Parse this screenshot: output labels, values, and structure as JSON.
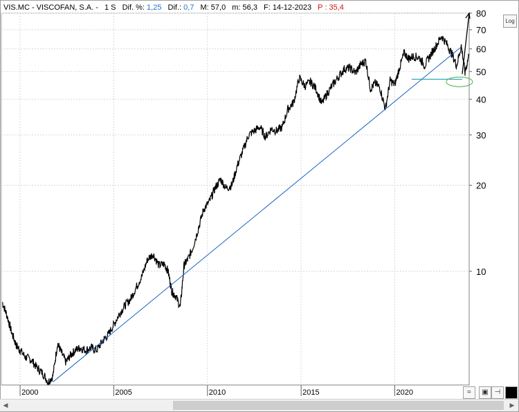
{
  "header": {
    "ticker": "VIS.MC - VISCOFAN, S.A. -",
    "timeframe": "1 S",
    "dif_pct_label": "Dif. %:",
    "dif_pct_value": "1,25",
    "dif_label": "Dif.:",
    "dif_value": "0,7",
    "max_label": "M: 57,0",
    "min_label": "m: 56,3",
    "date_label": "F: 14-12-2023",
    "p_label": "P : 35,4"
  },
  "controls": {
    "log_button": "Log",
    "scroll_left": "◀",
    "scroll_right": "▶"
  },
  "colors": {
    "price": "#000000",
    "trendline": "#1565c0",
    "support": "#0097a7",
    "ellipse": "#4caf50",
    "header_value": "#1f6fd1",
    "header_p": "#d21414",
    "grid": "#d8d8d8"
  },
  "chart_data": {
    "type": "line",
    "title": "VIS.MC - VISCOFAN, S.A.",
    "scale": "log",
    "ylim": [
      4.0,
      80
    ],
    "xlim": [
      1999.0,
      2023.97
    ],
    "y_ticks": [
      10,
      20,
      30,
      40,
      50,
      60,
      70,
      80
    ],
    "x_ticks": [
      2000,
      2005,
      2010,
      2015,
      2020
    ],
    "grid": true,
    "series": [
      {
        "x": [
          1999.05,
          1999.3,
          1999.55,
          1999.8,
          2000.0,
          2000.3,
          2000.6,
          2000.9,
          2001.2,
          2001.5,
          2001.75,
          2002.0,
          2002.2,
          2002.45,
          2002.7,
          2002.95,
          2003.2,
          2003.5,
          2003.8,
          2004.1,
          2004.4,
          2004.7,
          2005.0,
          2005.3,
          2005.6,
          2005.9,
          2006.2,
          2006.5,
          2006.8,
          2007.1,
          2007.4,
          2007.7,
          2007.9,
          2008.1,
          2008.3,
          2008.55,
          2008.75,
          2008.95,
          2009.2,
          2009.5,
          2009.8,
          2010.1,
          2010.4,
          2010.7,
          2011.0,
          2011.3,
          2011.6,
          2011.9,
          2012.2,
          2012.5,
          2012.8,
          2013.1,
          2013.4,
          2013.7,
          2014.0,
          2014.3,
          2014.6,
          2014.9,
          2015.2,
          2015.5,
          2015.8,
          2016.1,
          2016.4,
          2016.7,
          2017.0,
          2017.3,
          2017.6,
          2017.9,
          2018.2,
          2018.45,
          2018.7,
          2018.95,
          2019.2,
          2019.5,
          2019.75,
          2020.0,
          2020.25,
          2020.5,
          2020.75,
          2021.0,
          2021.3,
          2021.6,
          2021.9,
          2022.2,
          2022.5,
          2022.8,
          2023.05,
          2023.3,
          2023.55,
          2023.75,
          2023.95
        ],
        "y": [
          7.8,
          7.0,
          6.1,
          5.5,
          5.3,
          5.0,
          4.9,
          4.6,
          4.4,
          4.1,
          4.3,
          5.6,
          5.2,
          4.8,
          5.1,
          5.3,
          5.4,
          5.3,
          5.4,
          5.3,
          5.7,
          6.0,
          6.5,
          7.1,
          7.6,
          8.0,
          8.8,
          9.6,
          11.0,
          11.5,
          10.5,
          10.6,
          10.0,
          8.5,
          8.2,
          7.5,
          10.5,
          11.0,
          12.0,
          14.0,
          16.5,
          17.5,
          19.5,
          21.0,
          19.5,
          20.0,
          23.5,
          26.5,
          30.0,
          31.0,
          32.0,
          29.5,
          31.5,
          31.0,
          32.0,
          37.0,
          39.0,
          47.5,
          44.5,
          46.0,
          43.5,
          38.5,
          42.0,
          45.0,
          48.0,
          51.0,
          51.5,
          49.5,
          53.0,
          54.5,
          43.5,
          45.5,
          44.0,
          37.0,
          46.5,
          45.0,
          51.5,
          58.0,
          55.5,
          56.5,
          56.0,
          52.5,
          57.0,
          61.5,
          66.5,
          62.0,
          57.5,
          52.5,
          61.5,
          49.5,
          57.0
        ]
      }
    ],
    "annotations": [
      {
        "kind": "trendline",
        "from": [
          2001.75,
          4.1
        ],
        "to": [
          2023.55,
          61.0
        ]
      },
      {
        "kind": "horizontal_line",
        "y": 47.0,
        "x": [
          2020.9,
          2023.6
        ]
      },
      {
        "kind": "ellipse",
        "center": [
          2023.45,
          46.0
        ]
      },
      {
        "kind": "arrow",
        "from": [
          2023.6,
          49.0
        ],
        "to": [
          2023.97,
          80.0
        ]
      }
    ]
  }
}
